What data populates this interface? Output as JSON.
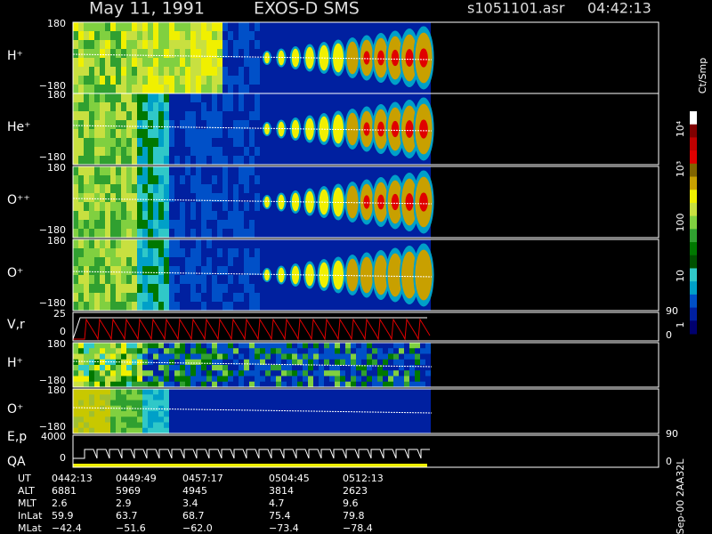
{
  "header": {
    "date": "May 11, 1991",
    "instrument": "EXOS-D SMS",
    "file": "s1051101.asr",
    "time": "04:42:13"
  },
  "panels": [
    {
      "label": "H⁺",
      "ticks": [
        "180",
        "−180"
      ]
    },
    {
      "label": "He⁺",
      "ticks": [
        "180",
        "−180"
      ]
    },
    {
      "label": "O⁺⁺",
      "ticks": [
        "180",
        "−180"
      ]
    },
    {
      "label": "O⁺",
      "ticks": [
        "180",
        "−180"
      ]
    },
    {
      "label": "V,r",
      "ticks": [
        "25",
        "0"
      ],
      "right_ticks": [
        "90",
        "0"
      ]
    },
    {
      "label": "H⁺",
      "ticks": [
        "180",
        "−180"
      ]
    },
    {
      "label": "O⁺",
      "ticks": [
        "180",
        "−180"
      ]
    },
    {
      "label": "E,p",
      "label2": "QA",
      "ticks": [
        "4000",
        "0"
      ],
      "right_ticks": [
        "90",
        "0"
      ]
    }
  ],
  "colorbar": {
    "unit": "Ct/Smp",
    "ticks": [
      "10⁴",
      "10³",
      "100",
      "10",
      "1"
    ]
  },
  "footer_note": "Sep-00 2AA32L",
  "table": {
    "rows": [
      [
        "UT",
        "0442:13",
        "0449:49",
        "0457:17",
        "0504:45",
        "0512:13"
      ],
      [
        "ALT",
        "6881",
        "5969",
        "4945",
        "3814",
        "2623"
      ],
      [
        "MLT",
        "2.6",
        "2.9",
        "3.4",
        "4.7",
        "9.6"
      ],
      [
        "InLat",
        "59.9",
        "63.7",
        "68.7",
        "75.4",
        "79.8"
      ],
      [
        "MLat",
        "−42.4",
        "−51.6",
        "−62.0",
        "−73.4",
        "−78.4"
      ]
    ]
  }
}
